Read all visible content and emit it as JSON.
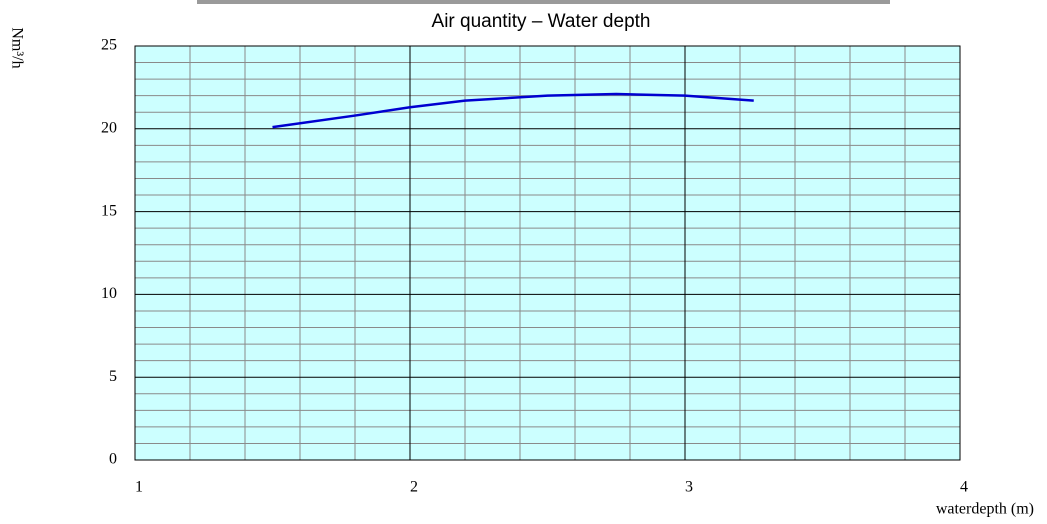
{
  "chart_data": {
    "type": "line",
    "title": "Air quantity – Water depth",
    "y_label": "Nm³/h",
    "x_label": "waterdepth (m)",
    "x": [
      1.5,
      1.8,
      2.0,
      2.2,
      2.5,
      2.75,
      3.0,
      3.25
    ],
    "series": [
      {
        "color": "#0000d0",
        "values": [
          20.1,
          20.8,
          21.3,
          21.7,
          22.0,
          22.1,
          22.0,
          21.7
        ]
      }
    ],
    "xlim": [
      1,
      4
    ],
    "xticks": [
      1,
      2,
      3,
      4
    ],
    "ylim": [
      0,
      25
    ],
    "yticks": [
      0,
      5,
      10,
      15,
      20,
      25
    ],
    "grid": true,
    "background": "#ccffff"
  }
}
